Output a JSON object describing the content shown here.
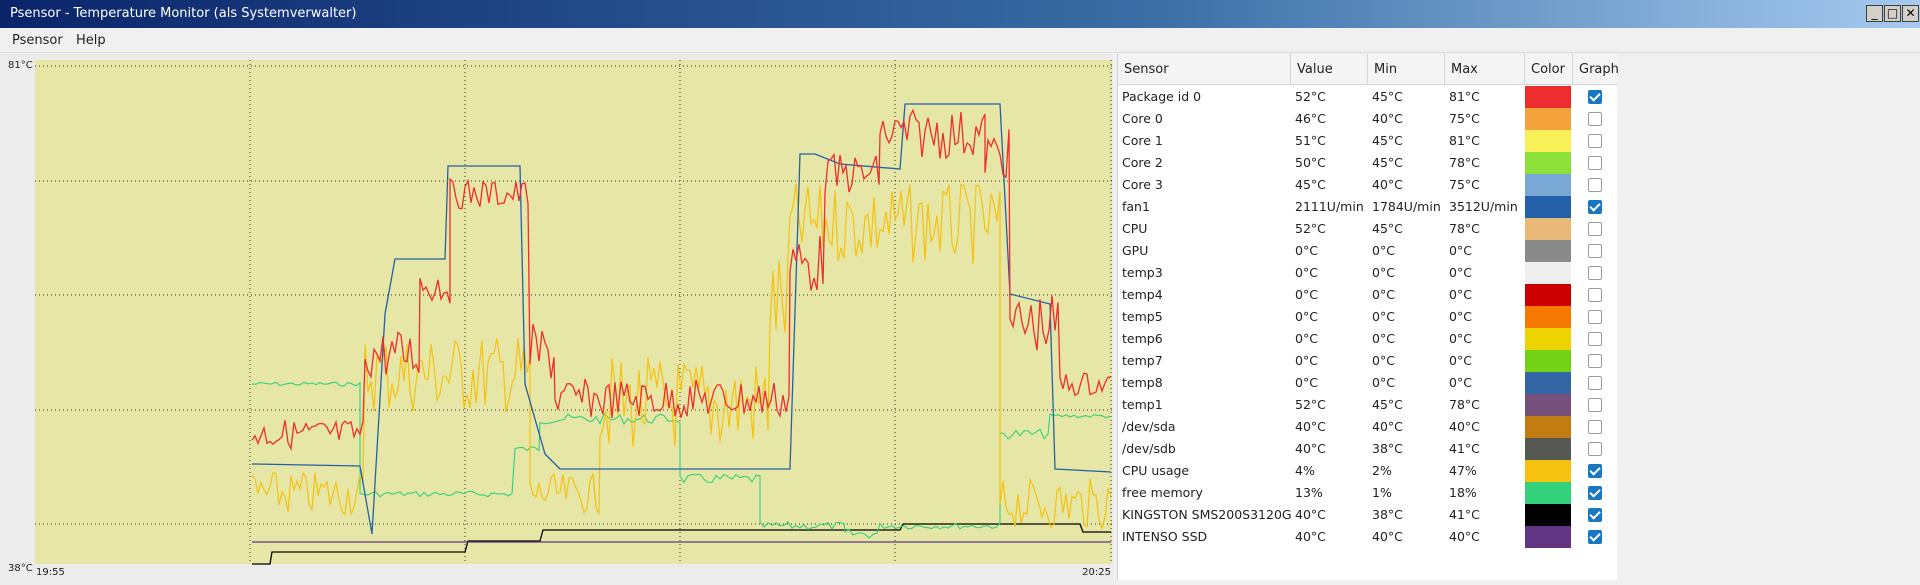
{
  "window": {
    "title": "Psensor - Temperature Monitor (als Systemverwalter)",
    "buttons": [
      "_",
      "□",
      "✕"
    ]
  },
  "menu": [
    "Psensor",
    "Help"
  ],
  "graph": {
    "y_max_label": "81°C",
    "y_min_label": "38°C",
    "x_start_label": "19:55",
    "x_end_label": "20:25",
    "background": "#e6e6a6",
    "grid_color": "#333333"
  },
  "table": {
    "headers": [
      "Sensor",
      "Value",
      "Min",
      "Max",
      "Color",
      "Graph"
    ],
    "rows": [
      {
        "sensor": "Package id 0",
        "value": "52°C",
        "min": "45°C",
        "max": "81°C",
        "color": "#ee2e2e",
        "graph": true
      },
      {
        "sensor": "Core 0",
        "value": "46°C",
        "min": "40°C",
        "max": "75°C",
        "color": "#f4a23c",
        "graph": false
      },
      {
        "sensor": "Core 1",
        "value": "51°C",
        "min": "45°C",
        "max": "81°C",
        "color": "#f9ef56",
        "graph": false
      },
      {
        "sensor": "Core 2",
        "value": "50°C",
        "min": "45°C",
        "max": "78°C",
        "color": "#8ce038",
        "graph": false
      },
      {
        "sensor": "Core 3",
        "value": "45°C",
        "min": "40°C",
        "max": "75°C",
        "color": "#79a7d6",
        "graph": false
      },
      {
        "sensor": "fan1",
        "value": "2111U/min",
        "min": "1784U/min",
        "max": "3512U/min",
        "color": "#2460a8",
        "graph": true
      },
      {
        "sensor": "CPU",
        "value": "52°C",
        "min": "45°C",
        "max": "78°C",
        "color": "#e8b878",
        "graph": false
      },
      {
        "sensor": "GPU",
        "value": "0°C",
        "min": "0°C",
        "max": "0°C",
        "color": "#8a8a8a",
        "graph": false
      },
      {
        "sensor": "temp3",
        "value": "0°C",
        "min": "0°C",
        "max": "0°C",
        "color": "#eeeeee",
        "graph": false
      },
      {
        "sensor": "temp4",
        "value": "0°C",
        "min": "0°C",
        "max": "0°C",
        "color": "#cc0000",
        "graph": false
      },
      {
        "sensor": "temp5",
        "value": "0°C",
        "min": "0°C",
        "max": "0°C",
        "color": "#f57900",
        "graph": false
      },
      {
        "sensor": "temp6",
        "value": "0°C",
        "min": "0°C",
        "max": "0°C",
        "color": "#edd400",
        "graph": false
      },
      {
        "sensor": "temp7",
        "value": "0°C",
        "min": "0°C",
        "max": "0°C",
        "color": "#73d216",
        "graph": false
      },
      {
        "sensor": "temp8",
        "value": "0°C",
        "min": "0°C",
        "max": "0°C",
        "color": "#3465a4",
        "graph": false
      },
      {
        "sensor": "temp1",
        "value": "52°C",
        "min": "45°C",
        "max": "78°C",
        "color": "#75507b",
        "graph": false
      },
      {
        "sensor": "/dev/sda",
        "value": "40°C",
        "min": "40°C",
        "max": "40°C",
        "color": "#c17d11",
        "graph": false
      },
      {
        "sensor": "/dev/sdb",
        "value": "40°C",
        "min": "38°C",
        "max": "41°C",
        "color": "#555753",
        "graph": false
      },
      {
        "sensor": "CPU usage",
        "value": "4%",
        "min": "2%",
        "max": "47%",
        "color": "#f5c211",
        "graph": true
      },
      {
        "sensor": "free memory",
        "value": "13%",
        "min": "1%",
        "max": "18%",
        "color": "#33d17a",
        "graph": true
      },
      {
        "sensor": "KINGSTON SMS200S3120G",
        "value": "40°C",
        "min": "38°C",
        "max": "41°C",
        "color": "#000000",
        "graph": true
      },
      {
        "sensor": "INTENSO SSD",
        "value": "40°C",
        "min": "40°C",
        "max": "40°C",
        "color": "#613583",
        "graph": true
      }
    ]
  }
}
